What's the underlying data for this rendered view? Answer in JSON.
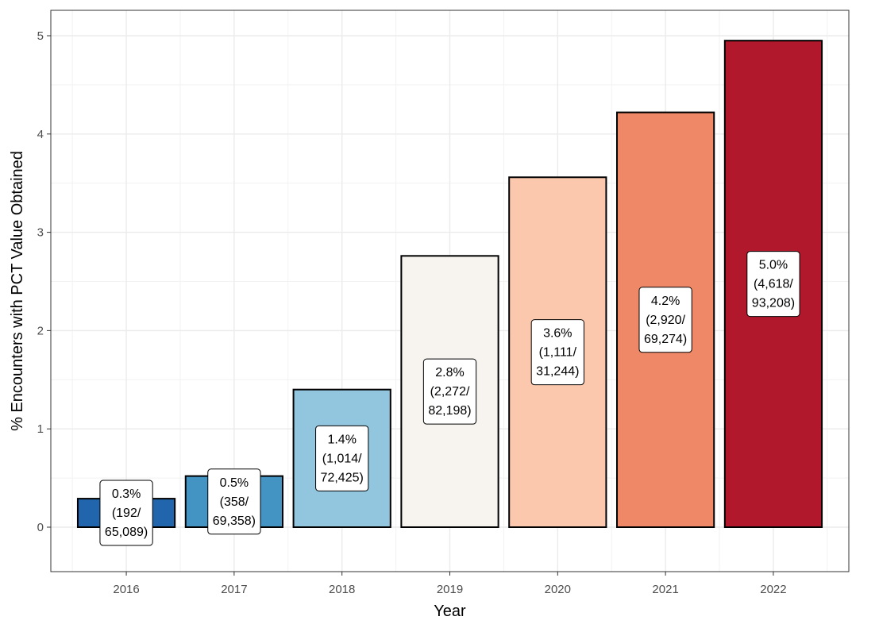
{
  "chart_data": {
    "type": "bar",
    "title": "",
    "xlabel": "Year",
    "ylabel": "% Encounters with PCT Value Obtained",
    "categories": [
      "2016",
      "2017",
      "2018",
      "2019",
      "2020",
      "2021",
      "2022"
    ],
    "values": [
      0.29,
      0.52,
      1.4,
      2.76,
      3.56,
      4.22,
      4.95
    ],
    "data_labels": [
      [
        "0.3%",
        "(192/",
        "65,089)"
      ],
      [
        "0.5%",
        "(358/",
        "69,358)"
      ],
      [
        "1.4%",
        "(1,014/",
        "72,425)"
      ],
      [
        "2.8%",
        "(2,272/",
        "82,198)"
      ],
      [
        "3.6%",
        "(1,111/",
        "31,244)"
      ],
      [
        "4.2%",
        "(2,920/",
        "69,274)"
      ],
      [
        "5.0%",
        "(4,618/",
        "93,208)"
      ]
    ],
    "colors": [
      "#2166ac",
      "#4393c3",
      "#92c5de",
      "#f7f4f0",
      "#fbc8ae",
      "#ee8866",
      "#b2182b"
    ],
    "y_ticks": [
      "0",
      "1",
      "2",
      "3",
      "4",
      "5"
    ],
    "ylim": [
      -0.45,
      5.3
    ],
    "grid": true,
    "legend": "none"
  }
}
